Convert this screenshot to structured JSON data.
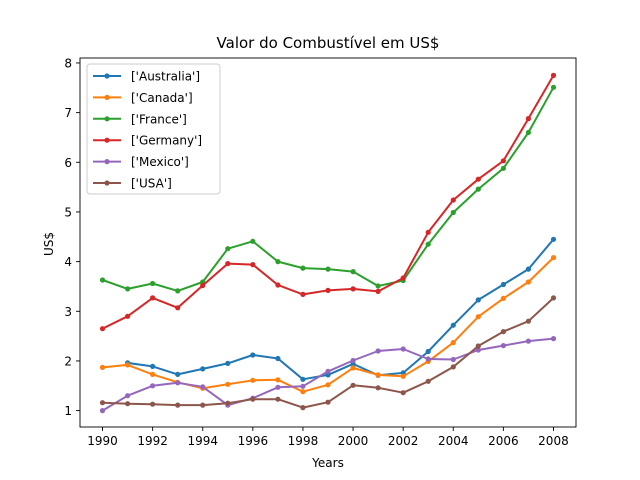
{
  "chart_data": {
    "type": "line",
    "title": "Valor do Combustível em US$",
    "xlabel": "Years",
    "ylabel": "US$",
    "xlim": [
      1989.1,
      2008.9
    ],
    "ylim": [
      0.67,
      8.1
    ],
    "xticks": [
      1990,
      1992,
      1994,
      1996,
      1998,
      2000,
      2002,
      2004,
      2006,
      2008
    ],
    "yticks": [
      1,
      2,
      3,
      4,
      5,
      6,
      7,
      8
    ],
    "grid": false,
    "legend_position": "upper-left",
    "x": [
      1990,
      1991,
      1992,
      1993,
      1994,
      1995,
      1996,
      1997,
      1998,
      1999,
      2000,
      2001,
      2002,
      2003,
      2004,
      2005,
      2006,
      2007,
      2008
    ],
    "series": [
      {
        "name": "['Australia']",
        "color": "#1f77b4",
        "values": [
          null,
          1.96,
          1.89,
          1.73,
          1.84,
          1.95,
          2.12,
          2.05,
          1.63,
          1.72,
          1.94,
          1.71,
          1.76,
          2.19,
          2.72,
          3.23,
          3.54,
          3.85,
          4.45
        ]
      },
      {
        "name": "['Canada']",
        "color": "#ff7f0e",
        "values": [
          1.87,
          1.92,
          1.73,
          1.57,
          1.45,
          1.53,
          1.61,
          1.62,
          1.38,
          1.52,
          1.86,
          1.72,
          1.69,
          1.99,
          2.37,
          2.89,
          3.26,
          3.59,
          4.08
        ]
      },
      {
        "name": "['France']",
        "color": "#2ca02c",
        "values": [
          3.63,
          3.45,
          3.56,
          3.41,
          3.59,
          4.26,
          4.41,
          4.0,
          3.87,
          3.85,
          3.8,
          3.51,
          3.62,
          4.35,
          4.99,
          5.46,
          5.88,
          6.6,
          7.51
        ]
      },
      {
        "name": "['Germany']",
        "color": "#d62728",
        "values": [
          2.65,
          2.9,
          3.27,
          3.07,
          3.52,
          3.96,
          3.94,
          3.53,
          3.34,
          3.42,
          3.45,
          3.4,
          3.67,
          4.59,
          5.24,
          5.66,
          6.03,
          6.88,
          7.75
        ]
      },
      {
        "name": "['Mexico']",
        "color": "#9467bd",
        "values": [
          1.0,
          1.3,
          1.5,
          1.56,
          1.48,
          1.11,
          1.25,
          1.47,
          1.49,
          1.79,
          2.01,
          2.2,
          2.24,
          2.04,
          2.03,
          2.22,
          2.31,
          2.4,
          2.45
        ]
      },
      {
        "name": "['USA']",
        "color": "#8c564b",
        "values": [
          1.16,
          1.14,
          1.13,
          1.11,
          1.11,
          1.15,
          1.23,
          1.23,
          1.06,
          1.17,
          1.51,
          1.46,
          1.36,
          1.59,
          1.88,
          2.3,
          2.59,
          2.8,
          3.27
        ]
      }
    ]
  }
}
